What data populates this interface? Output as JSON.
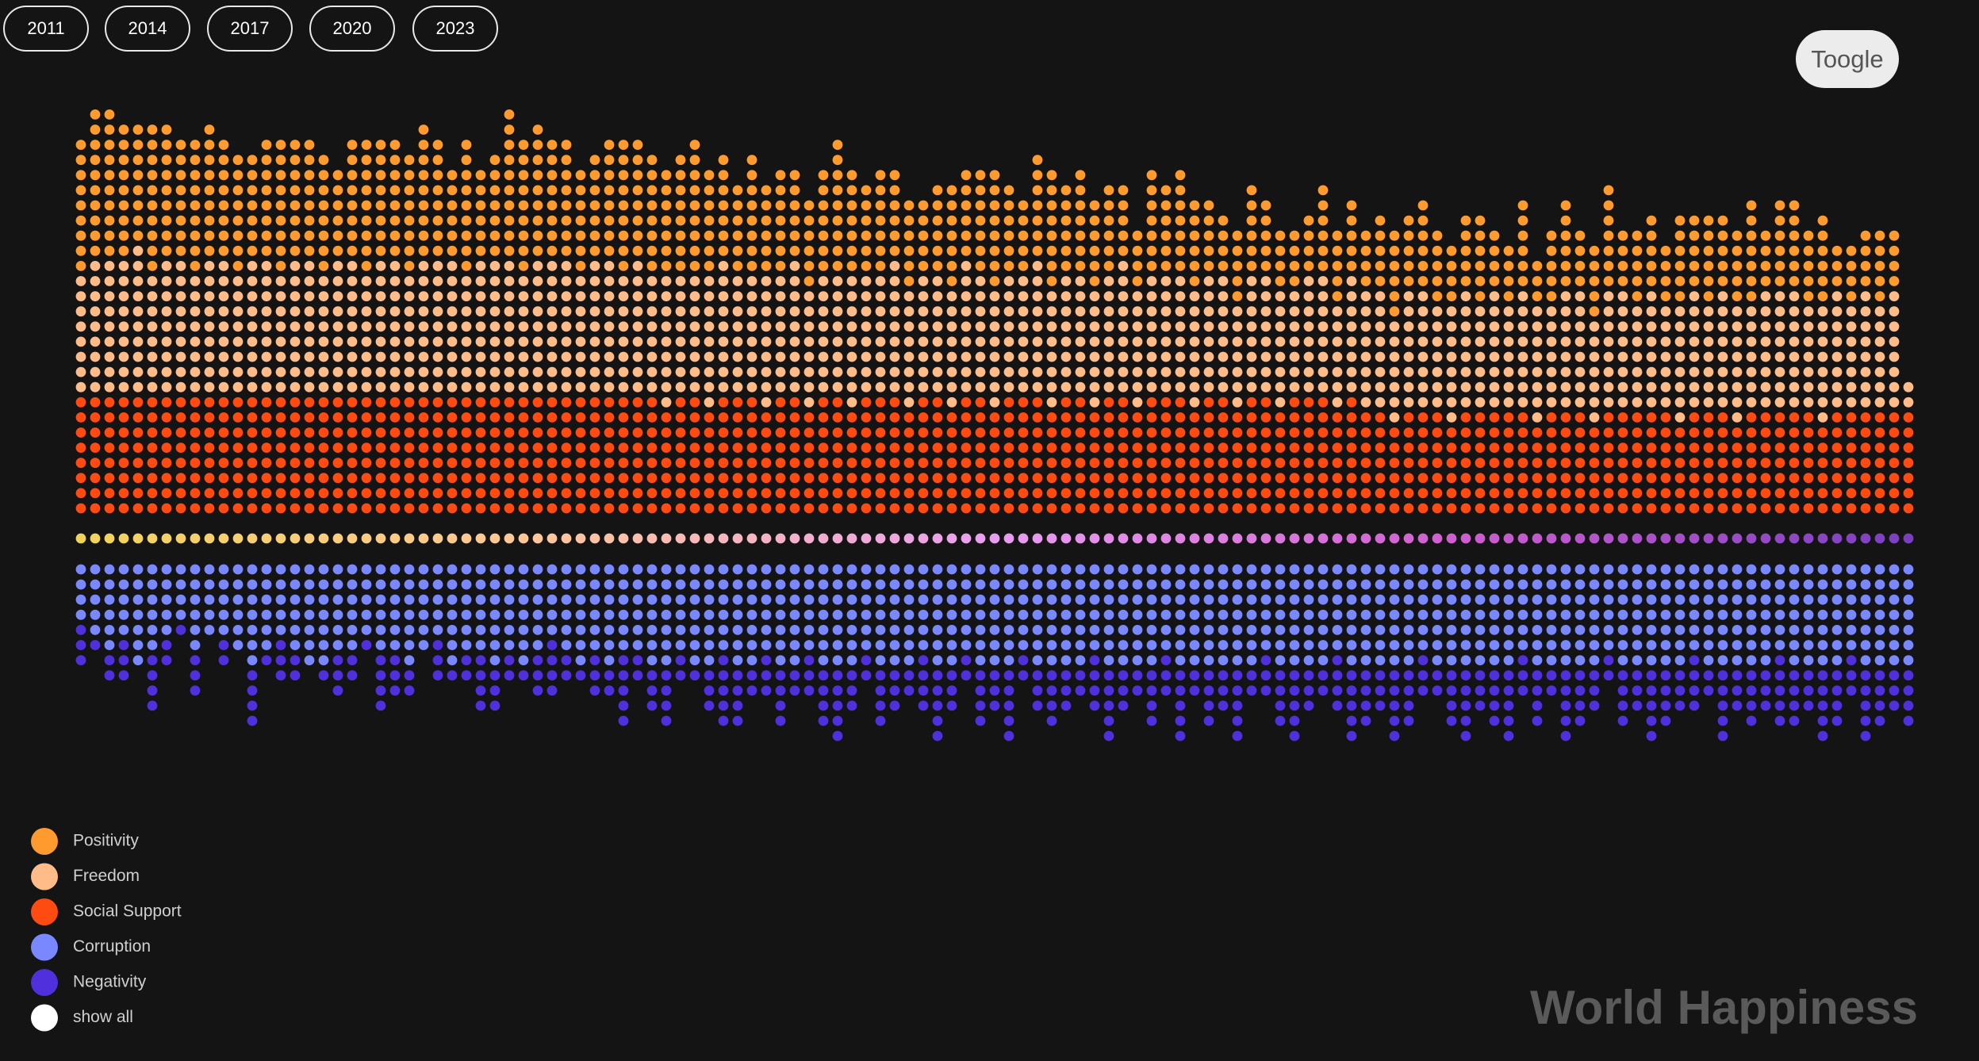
{
  "controls": {
    "years": [
      "2011",
      "2014",
      "2017",
      "2020",
      "2023"
    ],
    "toggle": "Toogle"
  },
  "chart_data": {
    "type": "dot",
    "title": "World Happiness",
    "center_colors": [
      "#f2d35a",
      "#ffc79a",
      "#e89ef0",
      "#cf5fcf",
      "#7a3fbf"
    ],
    "legend_extra": {
      "name": "show all",
      "color": "#ffffff"
    },
    "series": [
      {
        "name": "Positivity",
        "color": "#ff9a2e",
        "direction": "up",
        "values": [
          9,
          10,
          10,
          9,
          8,
          10,
          9,
          8,
          9,
          9,
          8,
          8,
          7,
          8,
          9,
          8,
          8,
          8,
          6,
          8,
          9,
          8,
          8,
          8,
          9,
          8,
          6,
          9,
          6,
          7,
          10,
          9,
          9,
          8,
          8,
          7,
          7,
          8,
          9,
          8,
          8,
          7,
          8,
          9,
          7,
          7,
          6,
          8,
          6,
          7,
          6,
          6,
          7,
          9,
          7,
          6,
          7,
          6,
          6,
          5,
          6,
          7,
          6,
          7,
          8,
          6,
          5,
          7,
          8,
          6,
          7,
          6,
          6,
          5,
          4,
          7,
          6,
          7,
          6,
          5,
          4,
          5,
          6,
          5,
          4,
          4,
          4,
          6,
          5,
          5,
          4,
          5,
          6,
          5,
          6,
          5,
          4,
          5,
          6,
          4,
          4,
          6,
          3,
          5,
          6,
          4,
          5,
          7,
          4,
          5,
          5,
          4,
          6,
          5,
          6,
          5,
          5,
          7,
          4,
          6,
          6,
          5,
          6,
          3,
          4,
          4,
          5,
          4,
          0
        ]
      },
      {
        "name": "Freedom",
        "color": "#ffbb88",
        "direction": "up",
        "values": [
          8,
          9,
          9,
          9,
          10,
          8,
          9,
          9,
          8,
          9,
          9,
          8,
          9,
          9,
          8,
          9,
          9,
          8,
          9,
          9,
          8,
          9,
          9,
          8,
          9,
          9,
          9,
          8,
          9,
          9,
          9,
          8,
          9,
          9,
          9,
          8,
          9,
          9,
          8,
          9,
          8,
          9,
          8,
          8,
          9,
          9,
          8,
          8,
          9,
          8,
          9,
          8,
          8,
          8,
          9,
          8,
          8,
          9,
          8,
          8,
          8,
          8,
          9,
          8,
          8,
          8,
          8,
          9,
          8,
          8,
          8,
          8,
          8,
          9,
          8,
          8,
          8,
          8,
          8,
          8,
          8,
          7,
          8,
          8,
          8,
          7,
          8,
          8,
          7,
          8,
          8,
          8,
          7,
          8,
          8,
          7,
          8,
          8,
          7,
          8,
          7,
          8,
          8,
          7,
          8,
          8,
          7,
          8,
          8,
          7,
          8,
          7,
          8,
          8,
          7,
          8,
          8,
          7,
          8,
          8,
          8,
          7,
          8,
          8,
          7,
          8,
          7,
          8,
          2
        ]
      },
      {
        "name": "Social Support",
        "color": "#ff4a12",
        "direction": "up",
        "values": [
          8,
          8,
          8,
          8,
          8,
          8,
          8,
          8,
          8,
          8,
          8,
          8,
          8,
          8,
          8,
          8,
          8,
          8,
          8,
          8,
          8,
          8,
          8,
          8,
          8,
          8,
          8,
          8,
          8,
          8,
          8,
          8,
          8,
          8,
          8,
          8,
          8,
          8,
          8,
          8,
          8,
          7,
          8,
          8,
          7,
          8,
          8,
          8,
          7,
          8,
          8,
          7,
          8,
          8,
          7,
          8,
          8,
          8,
          7,
          8,
          8,
          7,
          8,
          8,
          7,
          8,
          8,
          8,
          7,
          8,
          8,
          7,
          8,
          8,
          7,
          8,
          8,
          8,
          7,
          8,
          8,
          7,
          8,
          8,
          7,
          8,
          8,
          8,
          7,
          8,
          7,
          7,
          6,
          7,
          7,
          7,
          6,
          7,
          7,
          7,
          7,
          7,
          6,
          7,
          7,
          7,
          6,
          7,
          7,
          7,
          7,
          7,
          6,
          7,
          7,
          7,
          6,
          7,
          7,
          7,
          7,
          7,
          6,
          7,
          7,
          7,
          7,
          7,
          7
        ]
      },
      {
        "name": "Corruption",
        "color": "#7a88ff",
        "direction": "down",
        "values": [
          4,
          5,
          6,
          5,
          7,
          6,
          5,
          4,
          6,
          5,
          5,
          6,
          7,
          6,
          5,
          6,
          7,
          7,
          6,
          6,
          5,
          6,
          6,
          7,
          6,
          5,
          7,
          6,
          6,
          7,
          6,
          7,
          6,
          5,
          6,
          7,
          6,
          7,
          6,
          6,
          7,
          7,
          6,
          7,
          7,
          6,
          7,
          7,
          6,
          7,
          7,
          6,
          7,
          7,
          7,
          6,
          7,
          7,
          7,
          6,
          7,
          7,
          6,
          7,
          7,
          7,
          6,
          7,
          7,
          7,
          7,
          6,
          7,
          7,
          7,
          7,
          6,
          7,
          7,
          7,
          7,
          7,
          7,
          6,
          7,
          7,
          7,
          7,
          6,
          7,
          7,
          7,
          7,
          7,
          6,
          7,
          7,
          7,
          7,
          7,
          7,
          6,
          7,
          7,
          7,
          7,
          7,
          6,
          7,
          7,
          7,
          7,
          7,
          6,
          7,
          7,
          7,
          7,
          7,
          6,
          7,
          7,
          7,
          7,
          6,
          7,
          7,
          7,
          7
        ]
      },
      {
        "name": "Negativity",
        "color": "#5030dd",
        "direction": "down",
        "values": [
          3,
          1,
          2,
          3,
          0,
          4,
          2,
          1,
          3,
          0,
          2,
          0,
          4,
          1,
          3,
          2,
          0,
          1,
          3,
          2,
          1,
          4,
          3,
          2,
          0,
          3,
          1,
          2,
          4,
          3,
          2,
          1,
          3,
          4,
          2,
          1,
          3,
          2,
          5,
          2,
          3,
          4,
          2,
          1,
          3,
          5,
          4,
          2,
          3,
          4,
          2,
          3,
          4,
          5,
          3,
          2,
          4,
          3,
          2,
          4,
          5,
          3,
          2,
          4,
          3,
          5,
          2,
          3,
          4,
          3,
          2,
          4,
          5,
          3,
          2,
          4,
          3,
          5,
          2,
          4,
          3,
          5,
          2,
          3,
          4,
          5,
          3,
          2,
          4,
          5,
          4,
          3,
          5,
          4,
          3,
          2,
          4,
          5,
          3,
          4,
          5,
          3,
          4,
          2,
          5,
          4,
          3,
          2,
          4,
          3,
          5,
          4,
          3,
          4,
          2,
          5,
          3,
          4,
          3,
          5,
          4,
          3,
          5,
          4,
          3,
          5,
          4,
          3,
          4
        ]
      }
    ]
  }
}
